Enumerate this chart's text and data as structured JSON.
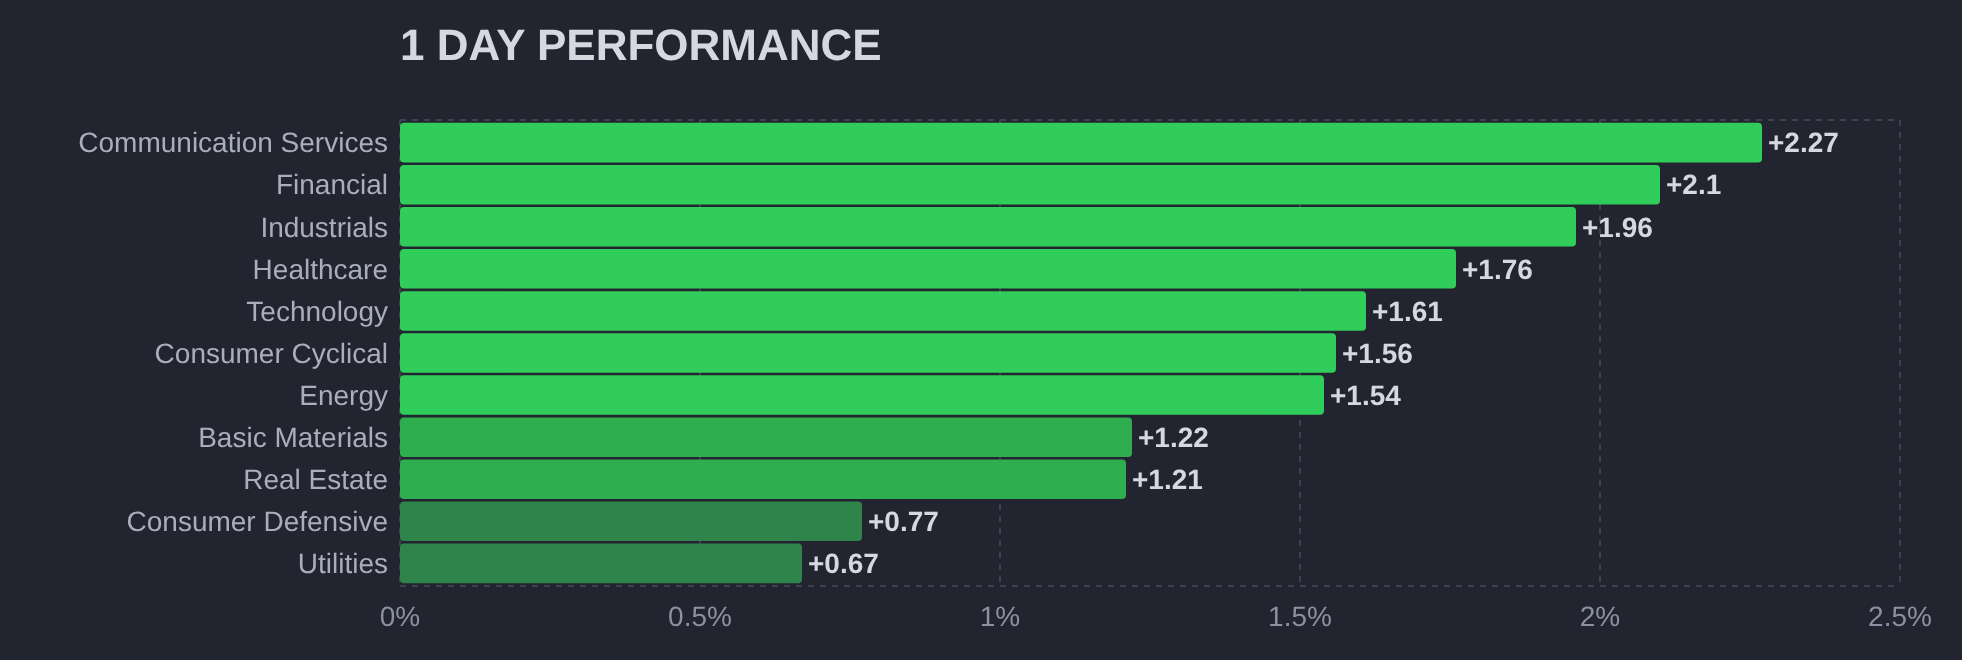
{
  "chart_data": {
    "type": "bar",
    "orientation": "horizontal",
    "title": "1 DAY PERFORMANCE",
    "categories": [
      "Communication Services",
      "Financial",
      "Industrials",
      "Healthcare",
      "Technology",
      "Consumer Cyclical",
      "Energy",
      "Basic Materials",
      "Real Estate",
      "Consumer Defensive",
      "Utilities"
    ],
    "values": [
      2.27,
      2.1,
      1.96,
      1.76,
      1.61,
      1.56,
      1.54,
      1.22,
      1.21,
      0.77,
      0.67
    ],
    "value_labels": [
      "+2.27",
      "+2.1",
      "+1.96",
      "+1.76",
      "+1.61",
      "+1.56",
      "+1.54",
      "+1.22",
      "+1.21",
      "+0.77",
      "+0.67"
    ],
    "colors": [
      "#30cd5a",
      "#30cd5a",
      "#30cd5a",
      "#30cd5a",
      "#30cd5a",
      "#30cd5a",
      "#30cd5a",
      "#2eae4e",
      "#2eae4e",
      "#2e844b",
      "#2e844b"
    ],
    "xlim": [
      0,
      2.5
    ],
    "xticks": [
      {
        "value": 0,
        "label": "0%"
      },
      {
        "value": 0.5,
        "label": "0.5%"
      },
      {
        "value": 1,
        "label": "1%"
      },
      {
        "value": 1.5,
        "label": "1.5%"
      },
      {
        "value": 2,
        "label": "2%"
      },
      {
        "value": 2.5,
        "label": "2.5%"
      }
    ],
    "grid": "x"
  }
}
